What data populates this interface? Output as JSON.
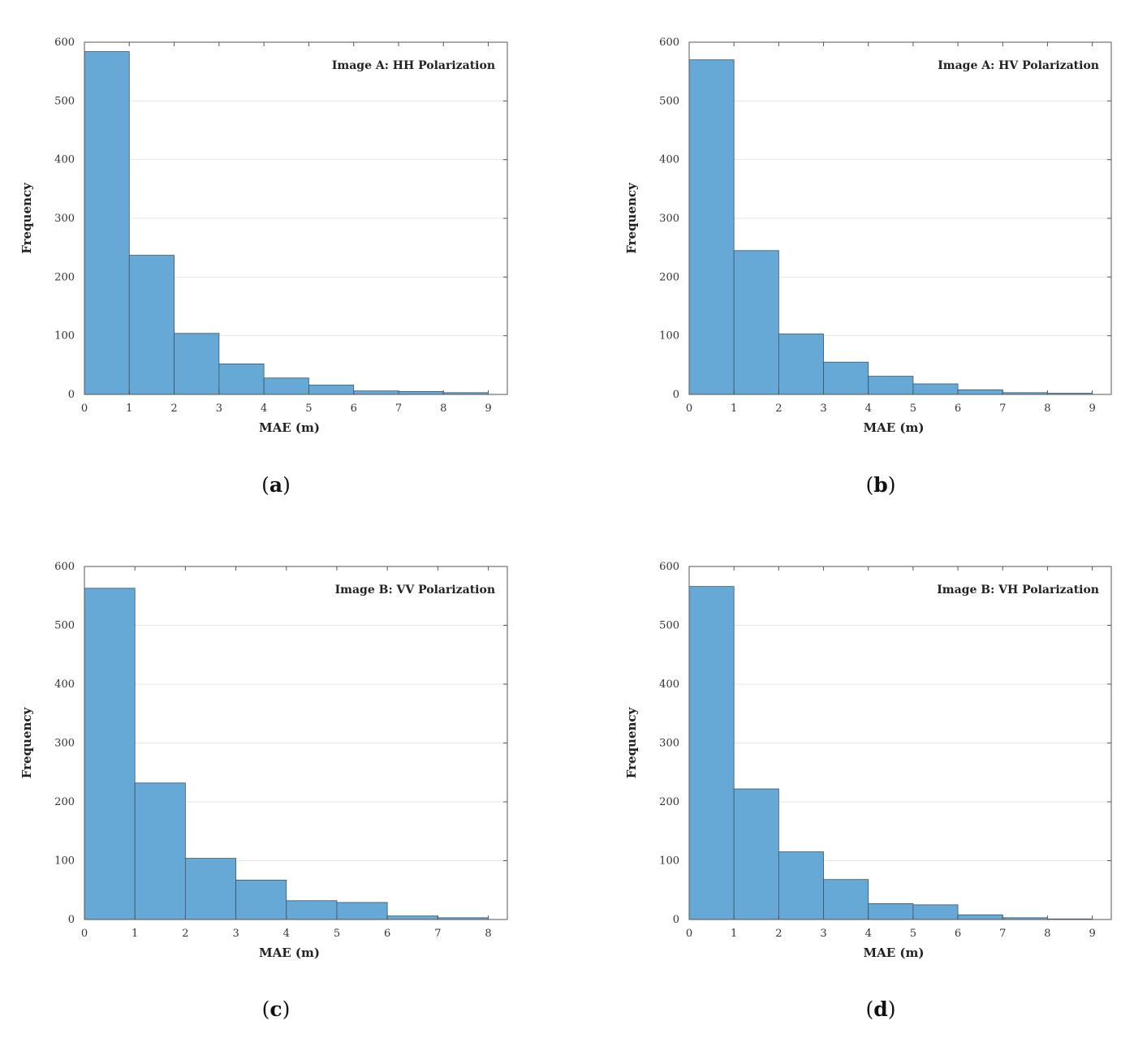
{
  "chart_data": [
    {
      "type": "bar",
      "title": "Image A: HH Polarization",
      "caption": "a",
      "xlabel": "MAE (m)",
      "ylabel": "Frequency",
      "xlim": [
        0,
        9
      ],
      "ylim": [
        0,
        600
      ],
      "xticks": [
        "0",
        "1",
        "2",
        "3",
        "4",
        "5",
        "6",
        "7",
        "8",
        "9"
      ],
      "yticks": [
        "0",
        "100",
        "200",
        "300",
        "400",
        "500",
        "600"
      ],
      "bin_edges": [
        0,
        1,
        2,
        3,
        4,
        5,
        6,
        7,
        8,
        9
      ],
      "values": [
        584,
        237,
        104,
        52,
        28,
        16,
        6,
        5,
        3
      ]
    },
    {
      "type": "bar",
      "title": "Image A: HV Polarization",
      "caption": "b",
      "xlabel": "MAE (m)",
      "ylabel": "Frequency",
      "xlim": [
        0,
        9
      ],
      "ylim": [
        0,
        600
      ],
      "xticks": [
        "0",
        "1",
        "2",
        "3",
        "4",
        "5",
        "6",
        "7",
        "8",
        "9"
      ],
      "yticks": [
        "0",
        "100",
        "200",
        "300",
        "400",
        "500",
        "600"
      ],
      "bin_edges": [
        0,
        1,
        2,
        3,
        4,
        5,
        6,
        7,
        8,
        9
      ],
      "values": [
        570,
        245,
        103,
        55,
        31,
        18,
        8,
        3,
        2
      ]
    },
    {
      "type": "bar",
      "title": "Image B: VV Polarization",
      "caption": "c",
      "xlabel": "MAE (m)",
      "ylabel": "Frequency",
      "xlim": [
        0,
        8
      ],
      "ylim": [
        0,
        600
      ],
      "xticks": [
        "0",
        "1",
        "2",
        "3",
        "4",
        "5",
        "6",
        "7",
        "8"
      ],
      "yticks": [
        "0",
        "100",
        "200",
        "300",
        "400",
        "500",
        "600"
      ],
      "bin_edges": [
        0,
        1,
        2,
        3,
        4,
        5,
        6,
        7,
        8
      ],
      "values": [
        563,
        232,
        104,
        67,
        32,
        29,
        6,
        3
      ]
    },
    {
      "type": "bar",
      "title": "Image B: VH Polarization",
      "caption": "d",
      "xlabel": "MAE (m)",
      "ylabel": "Frequency",
      "xlim": [
        0,
        9
      ],
      "ylim": [
        0,
        600
      ],
      "xticks": [
        "0",
        "1",
        "2",
        "3",
        "4",
        "5",
        "6",
        "7",
        "8",
        "9"
      ],
      "yticks": [
        "0",
        "100",
        "200",
        "300",
        "400",
        "500",
        "600"
      ],
      "bin_edges": [
        0,
        1,
        2,
        3,
        4,
        5,
        6,
        7,
        8,
        9
      ],
      "values": [
        566,
        222,
        115,
        68,
        27,
        25,
        8,
        3,
        1
      ]
    }
  ],
  "colors": {
    "bar_fill": "#66a9d6",
    "bar_edge": "#3c5566",
    "grid": "#e6e6e6",
    "axis": "#555555"
  }
}
